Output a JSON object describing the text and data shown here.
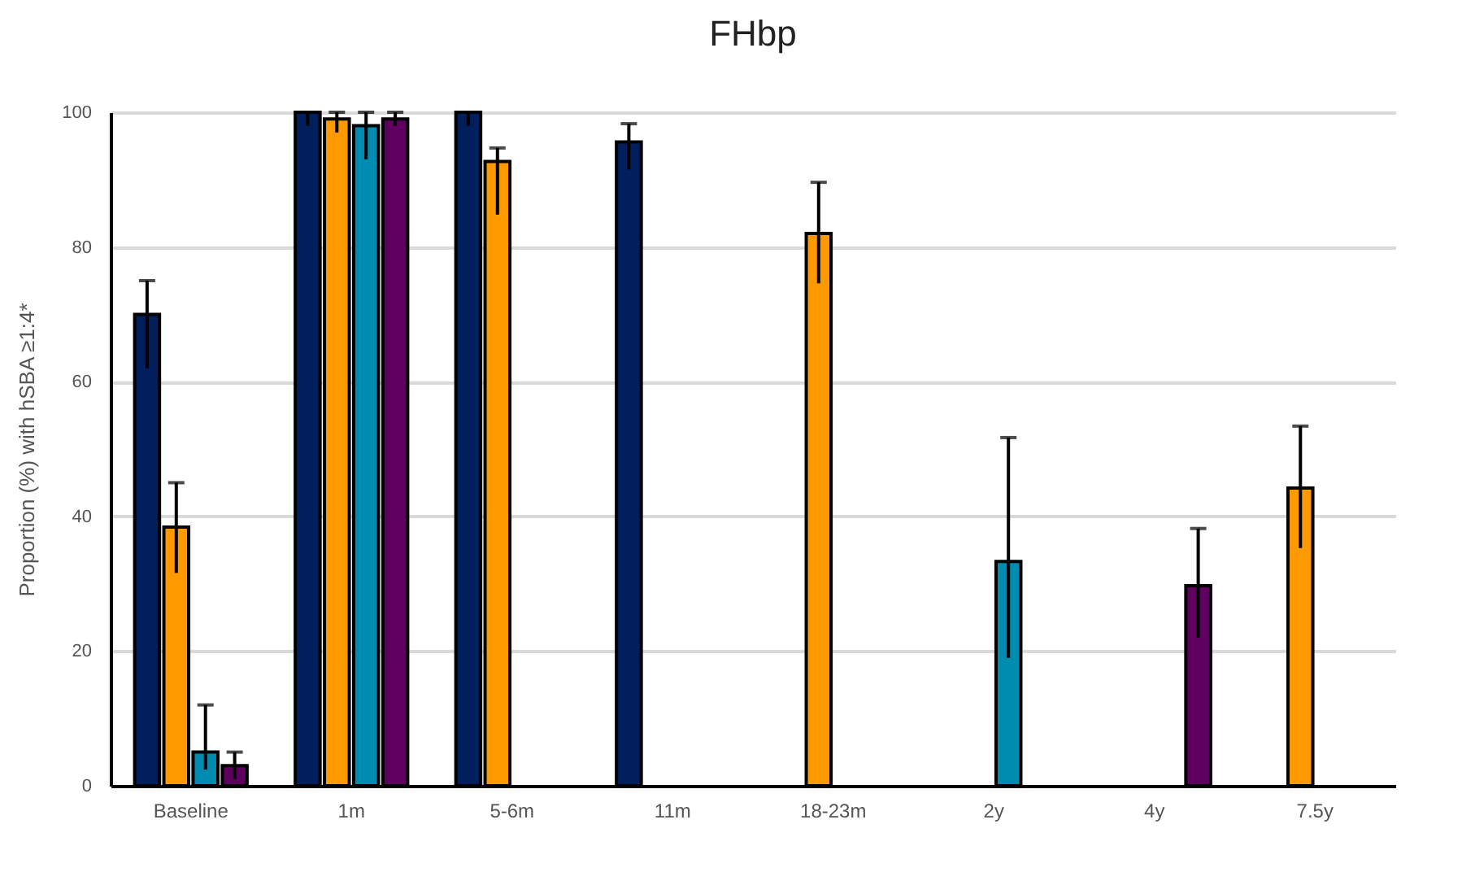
{
  "chart_data": {
    "type": "bar",
    "title": "FHbp",
    "ylabel": "Proportion (%) with hSBA ≥1:4*",
    "categories": [
      "Baseline",
      "1m",
      "5-6m",
      "11m",
      "18-23m",
      "2y",
      "4y",
      "7.5y"
    ],
    "ylim": [
      0,
      100
    ],
    "yticks": [
      0,
      20,
      40,
      60,
      80,
      100
    ],
    "grid": "y",
    "legend": false,
    "series": [
      {
        "color": "#001f5c",
        "values": [
          70,
          100,
          100,
          95.6,
          null,
          null,
          null,
          null
        ],
        "errors": [
          [
            62,
            75
          ],
          [
            98,
            100
          ],
          [
            98,
            100
          ],
          [
            91.5,
            98.3
          ],
          null,
          null,
          null,
          null
        ]
      },
      {
        "color": "#ff9900",
        "values": [
          38.4,
          99,
          92.7,
          null,
          82,
          null,
          null,
          44.2
        ],
        "errors": [
          [
            31.6,
            45
          ],
          [
            97,
            100
          ],
          [
            84.8,
            94.7
          ],
          null,
          [
            74.6,
            89.6
          ],
          null,
          null,
          [
            35.3,
            53.4
          ]
        ]
      },
      {
        "color": "#008cb0",
        "values": [
          5,
          98,
          null,
          null,
          null,
          33.3,
          null,
          null
        ],
        "errors": [
          [
            2.4,
            12
          ],
          [
            93,
            100
          ],
          null,
          null,
          null,
          [
            19,
            51.7
          ],
          null,
          null
        ]
      },
      {
        "color": "#5f0060",
        "values": [
          3,
          99,
          null,
          null,
          null,
          null,
          29.7,
          null
        ],
        "errors": [
          [
            1,
            5
          ],
          [
            98,
            100
          ],
          null,
          null,
          null,
          null,
          [
            22,
            38.2
          ],
          null
        ]
      }
    ]
  }
}
